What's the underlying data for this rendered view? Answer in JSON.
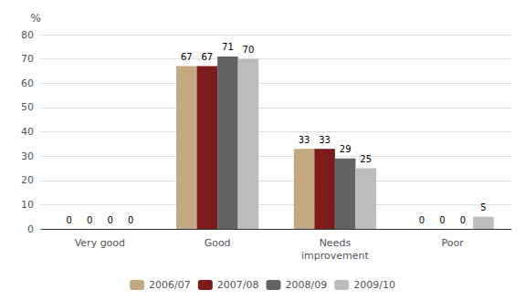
{
  "chart_data": {
    "type": "bar",
    "ylabel": "%",
    "categories": [
      "Very good",
      "Good",
      "Needs\nimprovement",
      "Poor"
    ],
    "series": [
      {
        "name": "2006/07",
        "color": "#C4A882",
        "values": [
          0,
          67,
          33,
          0
        ]
      },
      {
        "name": "2007/08",
        "color": "#7B1A1A",
        "values": [
          0,
          67,
          33,
          0
        ]
      },
      {
        "name": "2008/09",
        "color": "#636363",
        "values": [
          0,
          71,
          29,
          0
        ]
      },
      {
        "name": "2009/10",
        "color": "#BCBCBC",
        "values": [
          0,
          70,
          25,
          5
        ]
      }
    ],
    "ylim": [
      0,
      80
    ],
    "yticks": [
      0,
      10,
      20,
      30,
      40,
      50,
      60,
      70,
      80
    ],
    "grid": true,
    "legend": "bottom",
    "data_labels": true
  }
}
